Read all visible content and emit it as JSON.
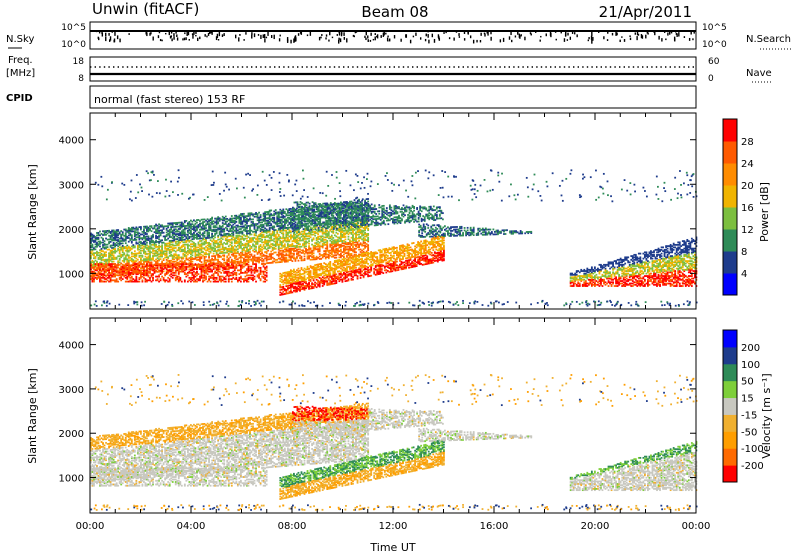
{
  "header": {
    "station": "Unwin (fitACF)",
    "beam": "Beam 08",
    "date": "21/Apr/2011"
  },
  "status_panels": {
    "nsky_label": "N.Sky",
    "nsearch_label": "N.Search",
    "noise_ticks": [
      "10^5",
      "10^0"
    ],
    "freq_label_1": "Freq.",
    "freq_label_2": "[MHz]",
    "freq_ticks": [
      "18",
      "8"
    ],
    "nave_label": "Nave",
    "nave_ticks": [
      "60",
      "0"
    ],
    "cpid_label": "CPID",
    "cpid_text": "normal (fast stereo) 153 RF"
  },
  "chart_data": [
    {
      "type": "heatmap",
      "name": "power",
      "ylabel": "Slant Range [km]",
      "yticks": [
        1000,
        2000,
        3000,
        4000
      ],
      "ylim": [
        200,
        4600
      ],
      "xlim": [
        0,
        24
      ],
      "colorbar_label": "Power [dB]",
      "colorbar_ticks": [
        "4",
        "8",
        "12",
        "16",
        "20",
        "24",
        "28"
      ],
      "colorscale": [
        "#0000ff",
        "#1e3c8c",
        "#2e8b57",
        "#7cbf3f",
        "#f0b400",
        "#ff8c00",
        "#ff5a00",
        "#ff0000"
      ]
    },
    {
      "type": "heatmap",
      "name": "velocity",
      "ylabel": "Slant Range [km]",
      "yticks": [
        1000,
        2000,
        3000,
        4000
      ],
      "ylim": [
        200,
        4600
      ],
      "xlim": [
        0,
        24
      ],
      "xlabel": "Time UT",
      "xtick_labels": [
        "00:00",
        "04:00",
        "08:00",
        "12:00",
        "16:00",
        "20:00",
        "00:00"
      ],
      "colorbar_label": "Velocity [m s⁻¹]",
      "colorbar_ticks": [
        "-200",
        "-100",
        "-50",
        "-15",
        "15",
        "50",
        "100",
        "200"
      ],
      "colorscale": [
        "#ff0000",
        "#ff6a00",
        "#ff9e00",
        "#f0b030",
        "#c8c8c0",
        "#7ecf3a",
        "#2e8b57",
        "#1e3c8c",
        "#0000ff"
      ]
    }
  ]
}
